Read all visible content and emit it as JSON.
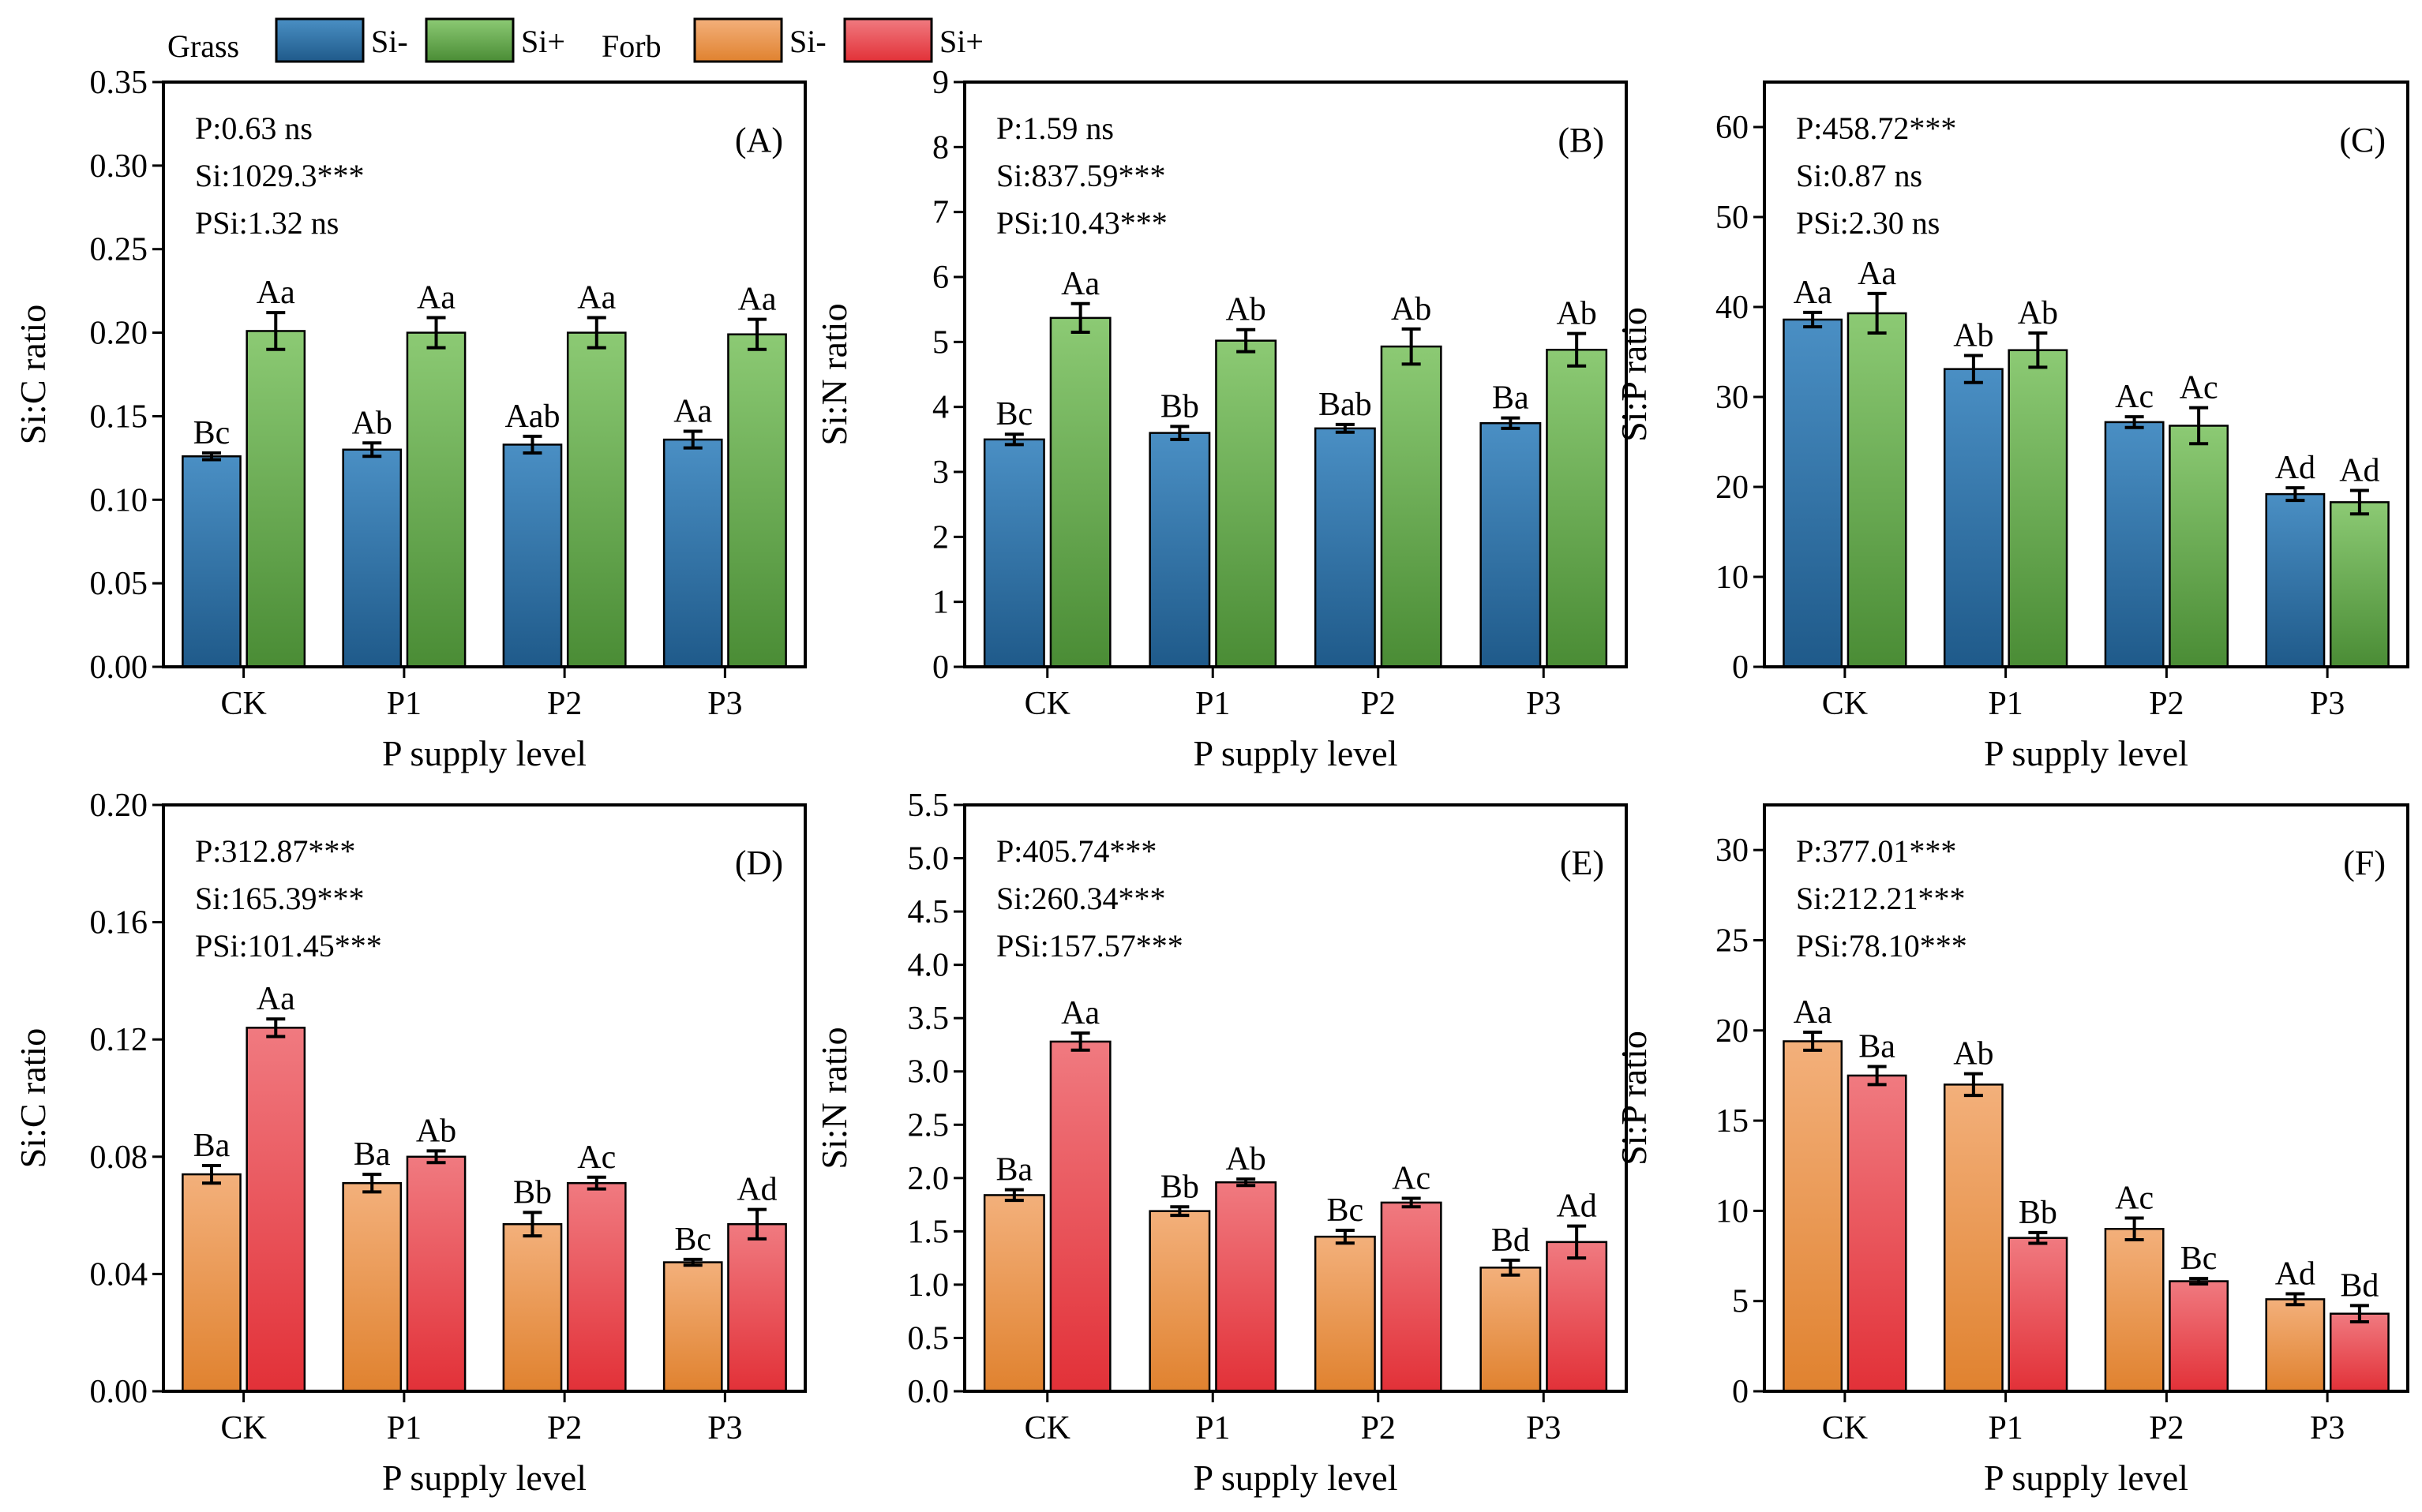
{
  "legend": {
    "grass_label": "Grass",
    "forb_label": "Forb",
    "items": [
      {
        "group": "grass",
        "label": "Si-",
        "grad": "gGrassMinus"
      },
      {
        "group": "grass",
        "label": "Si+",
        "grad": "gGrassPlus"
      },
      {
        "group": "forb",
        "label": "Si-",
        "grad": "gForbMinus"
      },
      {
        "group": "forb",
        "label": "Si+",
        "grad": "gForbPlus"
      }
    ]
  },
  "colors": {
    "grass_minus_top": "#4a8fc4",
    "grass_minus_bottom": "#1f5a8a",
    "grass_plus_top": "#8cca74",
    "grass_plus_bottom": "#4a8c35",
    "forb_minus_top": "#f3b07b",
    "forb_minus_bottom": "#e0822f",
    "forb_plus_top": "#f07a80",
    "forb_plus_bottom": "#e23138"
  },
  "chart_data": [
    {
      "panel": "(A)",
      "type": "bar",
      "group": "grass",
      "categories": [
        "CK",
        "P1",
        "P2",
        "P3"
      ],
      "xlabel": "P supply level",
      "ylabel": "Si:C ratio",
      "ylim": [
        0,
        0.35
      ],
      "yticks": [
        "0.00",
        "0.05",
        "0.10",
        "0.15",
        "0.20",
        "0.25",
        "0.30",
        "0.35"
      ],
      "stats": [
        "P:0.63 ns",
        "Si:1029.3***",
        "PSi:1.32 ns"
      ],
      "series": [
        {
          "name": "Si-",
          "values": [
            0.126,
            0.13,
            0.133,
            0.136
          ],
          "errors": [
            0.002,
            0.004,
            0.005,
            0.005
          ],
          "letters": [
            "Bc",
            "Ab",
            "Aab",
            "Aa"
          ]
        },
        {
          "name": "Si+",
          "values": [
            0.201,
            0.2,
            0.2,
            0.199
          ],
          "errors": [
            0.011,
            0.009,
            0.009,
            0.009
          ],
          "letters": [
            "Aa",
            "Aa",
            "Aa",
            "Aa"
          ]
        }
      ]
    },
    {
      "panel": "(B)",
      "type": "bar",
      "group": "grass",
      "categories": [
        "CK",
        "P1",
        "P2",
        "P3"
      ],
      "xlabel": "P supply level",
      "ylabel": "Si:N ratio",
      "ylim": [
        0,
        9
      ],
      "yticks": [
        "0",
        "1",
        "2",
        "3",
        "4",
        "5",
        "6",
        "7",
        "8",
        "9"
      ],
      "stats": [
        "P:1.59 ns",
        "Si:837.59***",
        "PSi:10.43***"
      ],
      "series": [
        {
          "name": "Si-",
          "values": [
            3.5,
            3.6,
            3.67,
            3.75
          ],
          "errors": [
            0.08,
            0.1,
            0.06,
            0.08
          ],
          "letters": [
            "Bc",
            "Bb",
            "Bab",
            "Ba"
          ]
        },
        {
          "name": "Si+",
          "values": [
            5.37,
            5.02,
            4.93,
            4.88
          ],
          "errors": [
            0.22,
            0.17,
            0.27,
            0.25
          ],
          "letters": [
            "Aa",
            "Ab",
            "Ab",
            "Ab"
          ]
        }
      ]
    },
    {
      "panel": "(C)",
      "type": "bar",
      "group": "grass",
      "categories": [
        "CK",
        "P1",
        "P2",
        "P3"
      ],
      "xlabel": "P supply level",
      "ylabel": "Si:P ratio",
      "ylim": [
        0,
        65
      ],
      "yticks": [
        "0",
        "10",
        "20",
        "30",
        "40",
        "50",
        "60"
      ],
      "stats": [
        "P:458.72***",
        "Si:0.87 ns",
        "PSi:2.30 ns"
      ],
      "series": [
        {
          "name": "Si-",
          "values": [
            38.6,
            33.1,
            27.2,
            19.2
          ],
          "errors": [
            0.8,
            1.5,
            0.6,
            0.7
          ],
          "letters": [
            "Aa",
            "Ab",
            "Ac",
            "Ad"
          ]
        },
        {
          "name": "Si+",
          "values": [
            39.3,
            35.2,
            26.8,
            18.3
          ],
          "errors": [
            2.2,
            1.9,
            2.0,
            1.3
          ],
          "letters": [
            "Aa",
            "Ab",
            "Ac",
            "Ad"
          ]
        }
      ]
    },
    {
      "panel": "(D)",
      "type": "bar",
      "group": "forb",
      "categories": [
        "CK",
        "P1",
        "P2",
        "P3"
      ],
      "xlabel": "P supply level",
      "ylabel": "Si:C ratio",
      "ylim": [
        0,
        0.2
      ],
      "yticks": [
        "0.00",
        "0.04",
        "0.08",
        "0.12",
        "0.16",
        "0.20"
      ],
      "stats": [
        "P:312.87***",
        "Si:165.39***",
        "PSi:101.45***"
      ],
      "series": [
        {
          "name": "Si-",
          "values": [
            0.074,
            0.071,
            0.057,
            0.044
          ],
          "errors": [
            0.003,
            0.003,
            0.004,
            0.001
          ],
          "letters": [
            "Ba",
            "Ba",
            "Bb",
            "Bc"
          ]
        },
        {
          "name": "Si+",
          "values": [
            0.124,
            0.08,
            0.071,
            0.057
          ],
          "errors": [
            0.003,
            0.002,
            0.002,
            0.005
          ],
          "letters": [
            "Aa",
            "Ab",
            "Ac",
            "Ad"
          ]
        }
      ]
    },
    {
      "panel": "(E)",
      "type": "bar",
      "group": "forb",
      "categories": [
        "CK",
        "P1",
        "P2",
        "P3"
      ],
      "xlabel": "P supply level",
      "ylabel": "Si:N ratio",
      "ylim": [
        0,
        5.5
      ],
      "yticks": [
        "0.0",
        "0.5",
        "1.0",
        "1.5",
        "2.0",
        "2.5",
        "3.0",
        "3.5",
        "4.0",
        "4.5",
        "5.0",
        "5.5"
      ],
      "stats": [
        "P:405.74***",
        "Si:260.34***",
        "PSi:157.57***"
      ],
      "series": [
        {
          "name": "Si-",
          "values": [
            1.84,
            1.69,
            1.45,
            1.16
          ],
          "errors": [
            0.05,
            0.04,
            0.06,
            0.07
          ],
          "letters": [
            "Ba",
            "Bb",
            "Bc",
            "Bd"
          ]
        },
        {
          "name": "Si+",
          "values": [
            3.28,
            1.96,
            1.77,
            1.4
          ],
          "errors": [
            0.08,
            0.03,
            0.04,
            0.15
          ],
          "letters": [
            "Aa",
            "Ab",
            "Ac",
            "Ad"
          ]
        }
      ]
    },
    {
      "panel": "(F)",
      "type": "bar",
      "group": "forb",
      "categories": [
        "CK",
        "P1",
        "P2",
        "P3"
      ],
      "xlabel": "P supply level",
      "ylabel": "Si:P ratio",
      "ylim": [
        0,
        32.5
      ],
      "yticks": [
        "0",
        "5",
        "10",
        "15",
        "20",
        "25",
        "30"
      ],
      "stats": [
        "P:377.01***",
        "Si:212.21***",
        "PSi:78.10***"
      ],
      "series": [
        {
          "name": "Si-",
          "values": [
            19.4,
            17.0,
            9.0,
            5.1
          ],
          "errors": [
            0.5,
            0.6,
            0.6,
            0.3
          ],
          "letters": [
            "Aa",
            "Ab",
            "Ac",
            "Ad"
          ]
        },
        {
          "name": "Si+",
          "values": [
            17.5,
            8.5,
            6.1,
            4.3
          ],
          "errors": [
            0.5,
            0.3,
            0.15,
            0.45
          ],
          "letters": [
            "Ba",
            "Bb",
            "Bc",
            "Bd"
          ]
        }
      ]
    }
  ]
}
